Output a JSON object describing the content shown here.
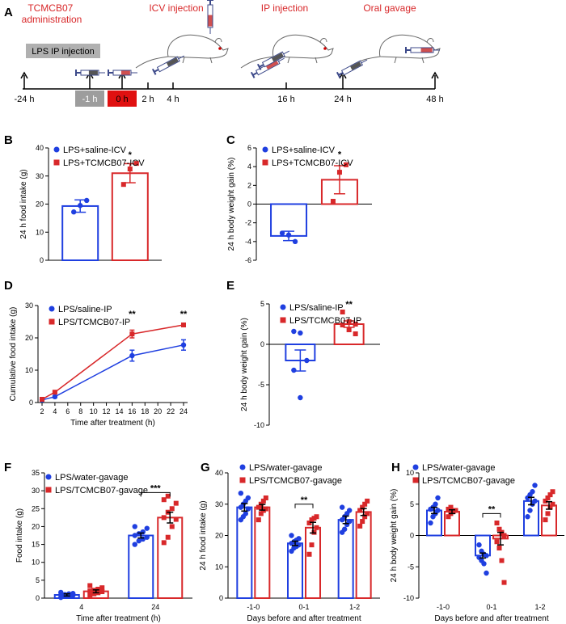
{
  "colors": {
    "blue": "#1f3fe0",
    "red": "#d8282a",
    "gray": "#b0b0b0",
    "grayHighlight": "#9d9d9d",
    "redHighlight": "#e01010"
  },
  "panelA": {
    "letter": "A",
    "titles": [
      "TCMCB07\nadministration",
      "ICV injection",
      "IP injection",
      "Oral gavage"
    ],
    "lps_box": "LPS IP injection",
    "ticks": [
      "-24 h",
      "-1 h",
      "0 h",
      "2 h",
      "4 h",
      "16 h",
      "24 h",
      "48 h"
    ],
    "icons": [
      "mouse-icon",
      "syringe-icon"
    ]
  },
  "chart_data": [
    {
      "panel": "B",
      "type": "bar",
      "legend": [
        "LPS+saline-ICV",
        "LPS+TCMCB07-ICV"
      ],
      "ylabel": "24 h food intake (g)",
      "ylim": [
        0,
        40
      ],
      "yticks": [
        0,
        10,
        20,
        30,
        40
      ],
      "series": [
        {
          "name": "LPS+saline-ICV",
          "mean": 19.3,
          "sem": 2.2,
          "points": [
            17.2,
            19.5,
            21.3
          ]
        },
        {
          "name": "LPS+TCMCB07-ICV",
          "mean": 31.0,
          "sem": 3.4,
          "points": [
            27.0,
            32.5,
            34.5
          ]
        }
      ],
      "annotations": [
        "*"
      ]
    },
    {
      "panel": "C",
      "type": "bar",
      "legend": [
        "LPS+saline-ICV",
        "LPS+TCMCB07-ICV"
      ],
      "ylabel": "24 h body weight gain (%)",
      "ylim": [
        -6,
        6
      ],
      "yticks": [
        -6,
        -4,
        -2,
        0,
        2,
        4,
        6
      ],
      "series": [
        {
          "name": "LPS+saline-ICV",
          "mean": -3.4,
          "sem": 0.5,
          "points": [
            -3.1,
            -3.3,
            -4.0
          ]
        },
        {
          "name": "LPS+TCMCB07-ICV",
          "mean": 2.6,
          "sem": 1.5,
          "points": [
            0.3,
            3.4,
            4.2
          ]
        }
      ],
      "annotations": [
        "*"
      ]
    },
    {
      "panel": "D",
      "type": "line",
      "legend": [
        "LPS/saline-IP",
        "LPS/TCMCB07-IP"
      ],
      "ylabel": "Cumulative food intake (g)",
      "xlabel": "Time after treatment (h)",
      "ylim": [
        0,
        30
      ],
      "yticks": [
        0,
        10,
        20,
        30
      ],
      "xlim": [
        2,
        24
      ],
      "xticks": [
        2,
        4,
        6,
        8,
        10,
        12,
        14,
        16,
        18,
        20,
        22,
        24
      ],
      "x": [
        2,
        4,
        16,
        24
      ],
      "series": [
        {
          "name": "LPS/saline-IP",
          "values": [
            0.8,
            1.8,
            14.5,
            17.8
          ],
          "sem": [
            0.2,
            0.3,
            1.7,
            1.6
          ]
        },
        {
          "name": "LPS/TCMCB07-IP",
          "values": [
            1.0,
            3.2,
            21.2,
            24.0
          ],
          "sem": [
            0.2,
            0.3,
            1.2,
            0.4
          ]
        }
      ],
      "annotations": [
        "**",
        "**"
      ]
    },
    {
      "panel": "E",
      "type": "bar",
      "legend": [
        "LPS/saline-IP",
        "LPS/TCMCB07-IP"
      ],
      "ylabel": "24 h body weight gain (%)",
      "ylim": [
        -10,
        5
      ],
      "yticks": [
        -10,
        -5,
        0,
        5
      ],
      "series": [
        {
          "name": "LPS/saline-IP",
          "mean": -2.0,
          "sem": 1.3,
          "points": [
            1.6,
            1.4,
            -2.0,
            -3.2,
            -6.6
          ]
        },
        {
          "name": "LPS/TCMCB07-IP",
          "mean": 2.5,
          "sem": 0.4,
          "points": [
            4.0,
            2.8,
            2.5,
            2.4,
            1.8,
            1.3
          ]
        }
      ],
      "annotations": [
        "**"
      ]
    },
    {
      "panel": "F",
      "type": "bar",
      "legend": [
        "LPS/water-gavage",
        "LPS/TCMCB07-gavage"
      ],
      "ylabel": "Food intake (g)",
      "xlabel": "Time after treatment (h)",
      "ylim": [
        0,
        35
      ],
      "yticks": [
        0,
        5,
        10,
        15,
        20,
        25,
        30,
        35
      ],
      "categories": [
        "4",
        "24"
      ],
      "series": [
        {
          "name": "LPS/water-gavage",
          "means": [
            0.9,
            17.5
          ],
          "sems": [
            0.3,
            0.7
          ],
          "points": [
            [
              0.2,
              0.5,
              0.6,
              0.8,
              0.9,
              1.0,
              1.2,
              1.3,
              1.6
            ],
            [
              15.0,
              16.0,
              16.5,
              17.0,
              17.5,
              18.0,
              18.5,
              19.5,
              20.0
            ]
          ]
        },
        {
          "name": "LPS/TCMCB07-gavage",
          "means": [
            1.9,
            22.5
          ],
          "sems": [
            0.4,
            1.5
          ],
          "points": [
            [
              0.8,
              1.2,
              1.5,
              1.8,
              2.0,
              2.2,
              2.5,
              2.9,
              3.5
            ],
            [
              15.5,
              17.0,
              20.0,
              22.0,
              22.5,
              24.0,
              25.0,
              26.5,
              27.5,
              28.5
            ]
          ]
        }
      ],
      "annotations": [
        "***"
      ]
    },
    {
      "panel": "G",
      "type": "bar",
      "legend": [
        "LPS/water-gavage",
        "LPS/TCMCB07-gavage"
      ],
      "ylabel": "24 h food intake (g)",
      "xlabel": "Days before and after treatment",
      "ylim": [
        0,
        40
      ],
      "yticks": [
        0,
        10,
        20,
        30,
        40
      ],
      "categories": [
        "-1-0",
        "0-1",
        "1-2"
      ],
      "series": [
        {
          "name": "LPS/water-gavage",
          "means": [
            29.0,
            17.5,
            25.0
          ],
          "sems": [
            1.2,
            0.7,
            1.2
          ],
          "points": [
            [
              25,
              26,
              27,
              28.5,
              29,
              30,
              31,
              32,
              33.5
            ],
            [
              15,
              16,
              16.5,
              17,
              17.5,
              18,
              18.5,
              19,
              20
            ],
            [
              21,
              22,
              23.5,
              24.5,
              25,
              26,
              27,
              28,
              29
            ]
          ]
        },
        {
          "name": "LPS/TCMCB07-gavage",
          "means": [
            29.0,
            22.5,
            27.5
          ],
          "sems": [
            0.9,
            1.7,
            1.1
          ],
          "points": [
            [
              25,
              27,
              28,
              28.5,
              29,
              30,
              31,
              32
            ],
            [
              14,
              17,
              21,
              22.5,
              24,
              25,
              25.5,
              26
            ],
            [
              23,
              24.5,
              26,
              27,
              28,
              29,
              30,
              31
            ]
          ]
        }
      ],
      "annotations": [
        "**"
      ]
    },
    {
      "panel": "H",
      "type": "bar",
      "legend": [
        "LPS/water-gavage",
        "LPS/TCMCB07-gavage"
      ],
      "ylabel": "24 h body weight gain (%)",
      "xlabel": "Days before and after treatment",
      "ylim": [
        -10,
        10
      ],
      "yticks": [
        -10,
        -5,
        0,
        5,
        10
      ],
      "categories": [
        "-1-0",
        "0-1",
        "1-2"
      ],
      "series": [
        {
          "name": "LPS/water-gavage",
          "means": [
            4.0,
            -3.2,
            5.5
          ],
          "sems": [
            0.5,
            0.4,
            0.6
          ],
          "points": [
            [
              2.0,
              3.0,
              3.5,
              4.0,
              4.2,
              4.5,
              5.0,
              6.0
            ],
            [
              -1.5,
              -2.5,
              -3.0,
              -3.2,
              -3.5,
              -4.0,
              -4.5,
              -6.0
            ],
            [
              3.0,
              4.0,
              5.0,
              5.5,
              6.0,
              6.5,
              7.0,
              8.0
            ]
          ]
        },
        {
          "name": "LPS/TCMCB07-gavage",
          "means": [
            3.8,
            -0.5,
            4.8
          ],
          "sems": [
            0.3,
            1.0,
            0.6
          ],
          "points": [
            [
              3.0,
              3.5,
              3.8,
              4.0,
              4.2,
              4.5
            ],
            [
              2.0,
              1.0,
              0.5,
              0.0,
              -1.0,
              -2.0,
              -4.0,
              -7.5
            ],
            [
              2.5,
              3.5,
              4.5,
              5.0,
              5.5,
              6.0,
              6.5,
              7.0
            ]
          ]
        }
      ],
      "annotations": [
        "**"
      ]
    }
  ]
}
